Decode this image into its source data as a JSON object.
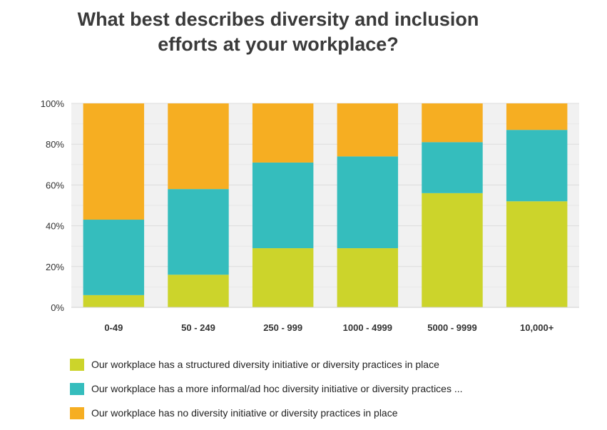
{
  "title": {
    "line1": "What best describes diversity and inclusion",
    "line2": "efforts at your workplace?"
  },
  "chart_data": {
    "type": "bar",
    "stacked": true,
    "categories": [
      "0-49",
      "50 - 249",
      "250 - 999",
      "1000 - 4999",
      "5000 - 9999",
      "10,000+"
    ],
    "series": [
      {
        "name": "Our workplace has a structured diversity initiative or diversity practices in place",
        "color": "#ccd42b",
        "values": [
          6,
          16,
          29,
          29,
          56,
          52
        ]
      },
      {
        "name": "Our workplace has a more informal/ad hoc diversity initiative or diversity practices ...",
        "color": "#35bdbd",
        "values": [
          37,
          42,
          42,
          45,
          25,
          35
        ]
      },
      {
        "name": "Our workplace has no diversity initiative or diversity practices in place",
        "color": "#f6ae22",
        "values": [
          57,
          42,
          29,
          26,
          19,
          13
        ]
      }
    ],
    "ylim": [
      0,
      100
    ],
    "yticks": [
      0,
      20,
      40,
      60,
      80,
      100
    ],
    "ytick_labels": [
      "0%",
      "20%",
      "40%",
      "60%",
      "80%",
      "100%"
    ],
    "grid": true,
    "legend_position": "bottom",
    "xlabel": "",
    "ylabel": ""
  }
}
